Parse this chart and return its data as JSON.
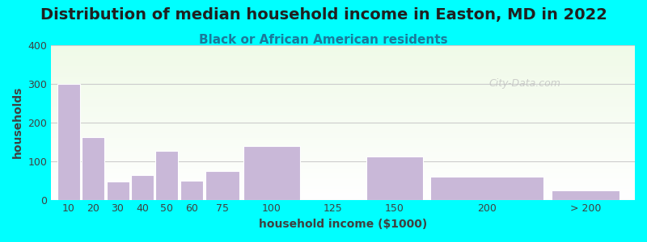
{
  "title": "Distribution of median household income in Easton, MD in 2022",
  "subtitle": "Black or African American residents",
  "xlabel": "household income ($1000)",
  "ylabel": "households",
  "background_outer": "#00FFFF",
  "bar_color": "#C9B8D8",
  "bar_edge_color": "#FFFFFF",
  "plot_bg_top": "#E8F5E0",
  "plot_bg_bottom": "#FFFFFF",
  "categories": [
    "10",
    "20",
    "30",
    "40",
    "50",
    "60",
    "75",
    "100",
    "125",
    "150",
    "200",
    "> 200"
  ],
  "values": [
    300,
    163,
    48,
    63,
    127,
    50,
    75,
    138,
    0,
    112,
    60,
    25
  ],
  "ylim": [
    0,
    400
  ],
  "yticks": [
    0,
    100,
    200,
    300,
    400
  ],
  "watermark": "City-Data.com",
  "title_fontsize": 14,
  "subtitle_fontsize": 11,
  "axis_label_fontsize": 10,
  "tick_fontsize": 9
}
